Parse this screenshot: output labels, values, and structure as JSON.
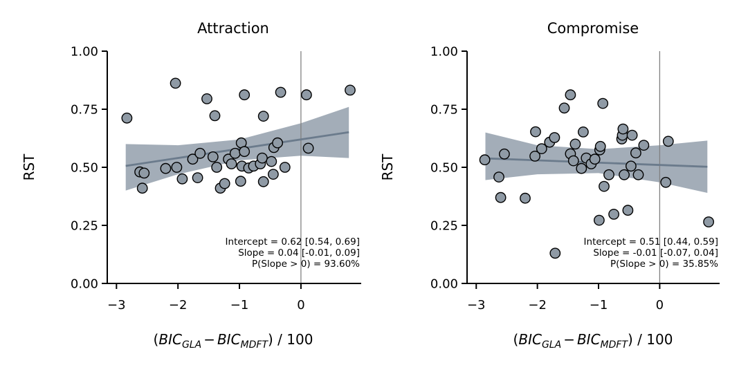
{
  "chart_data": [
    {
      "type": "scatter",
      "title": "Attraction",
      "ylabel": "RST",
      "xlabel_parts": {
        "open": "(",
        "a": "BIC",
        "a_sub": "GLA",
        "minus": "−",
        "b": "BIC",
        "b_sub": "MDFT",
        "close": ") / 100"
      },
      "xlim": [
        -3.15,
        0.98
      ],
      "ylim": [
        0,
        1
      ],
      "xticks": [
        {
          "value": -3,
          "label": "−3"
        },
        {
          "value": -2,
          "label": "−2"
        },
        {
          "value": -1,
          "label": "−1"
        },
        {
          "value": 0,
          "label": "0"
        }
      ],
      "yticks": [
        {
          "value": 0,
          "label": "0.00"
        },
        {
          "value": 0.25,
          "label": "0.25"
        },
        {
          "value": 0.5,
          "label": "0.50"
        },
        {
          "value": 0.75,
          "label": "0.75"
        },
        {
          "value": 1,
          "label": "1.00"
        }
      ],
      "vline_x": 0,
      "fit": {
        "x_range": [
          -2.85,
          0.78
        ],
        "intercept": 0.62,
        "slope": 0.04
      },
      "band": {
        "x": [
          -2.85,
          -2.0,
          -1.0,
          0.0,
          0.78
        ],
        "lower": [
          0.4,
          0.47,
          0.53,
          0.55,
          0.54
        ],
        "upper": [
          0.6,
          0.595,
          0.62,
          0.69,
          0.76
        ]
      },
      "points": [
        {
          "x": -2.83,
          "y": 0.712
        },
        {
          "x": -2.62,
          "y": 0.48
        },
        {
          "x": -2.58,
          "y": 0.41
        },
        {
          "x": -2.55,
          "y": 0.475
        },
        {
          "x": -2.2,
          "y": 0.495
        },
        {
          "x": -2.04,
          "y": 0.862
        },
        {
          "x": -2.02,
          "y": 0.5
        },
        {
          "x": -1.93,
          "y": 0.45
        },
        {
          "x": -1.76,
          "y": 0.535
        },
        {
          "x": -1.68,
          "y": 0.455
        },
        {
          "x": -1.64,
          "y": 0.56
        },
        {
          "x": -1.53,
          "y": 0.795
        },
        {
          "x": -1.43,
          "y": 0.545
        },
        {
          "x": -1.4,
          "y": 0.722
        },
        {
          "x": -1.37,
          "y": 0.5
        },
        {
          "x": -1.31,
          "y": 0.41
        },
        {
          "x": -1.24,
          "y": 0.43
        },
        {
          "x": -1.18,
          "y": 0.535
        },
        {
          "x": -1.13,
          "y": 0.515
        },
        {
          "x": -1.07,
          "y": 0.56
        },
        {
          "x": -0.98,
          "y": 0.44
        },
        {
          "x": -0.97,
          "y": 0.605
        },
        {
          "x": -0.96,
          "y": 0.505
        },
        {
          "x": -0.92,
          "y": 0.812
        },
        {
          "x": -0.92,
          "y": 0.568
        },
        {
          "x": -0.85,
          "y": 0.497
        },
        {
          "x": -0.77,
          "y": 0.505
        },
        {
          "x": -0.66,
          "y": 0.515
        },
        {
          "x": -0.63,
          "y": 0.54
        },
        {
          "x": -0.61,
          "y": 0.72
        },
        {
          "x": -0.61,
          "y": 0.438
        },
        {
          "x": -0.48,
          "y": 0.525
        },
        {
          "x": -0.45,
          "y": 0.47
        },
        {
          "x": -0.44,
          "y": 0.585
        },
        {
          "x": -0.38,
          "y": 0.605
        },
        {
          "x": -0.33,
          "y": 0.823
        },
        {
          "x": -0.26,
          "y": 0.5
        },
        {
          "x": 0.09,
          "y": 0.812
        },
        {
          "x": 0.12,
          "y": 0.582
        },
        {
          "x": 0.8,
          "y": 0.832
        }
      ],
      "annotation": [
        "Intercept = 0.62 [0.54, 0.69]",
        "Slope = 0.04 [-0.01, 0.09]",
        "P(Slope > 0) = 93.60%"
      ],
      "colors": {
        "point_fill": "#8f9aa5",
        "point_edge": "#000000",
        "band": "#a3adb8",
        "fit_line": "#6b7b8c",
        "vline": "#808080"
      }
    },
    {
      "type": "scatter",
      "title": "Compromise",
      "ylabel": "RST",
      "xlabel_parts": {
        "open": "(",
        "a": "BIC",
        "a_sub": "GLA",
        "minus": "−",
        "b": "BIC",
        "b_sub": "MDFT",
        "close": ") / 100"
      },
      "xlim": [
        -3.15,
        0.98
      ],
      "ylim": [
        0,
        1
      ],
      "xticks": [
        {
          "value": -3,
          "label": "−3"
        },
        {
          "value": -2,
          "label": "−2"
        },
        {
          "value": -1,
          "label": "−1"
        },
        {
          "value": 0,
          "label": "0"
        }
      ],
      "yticks": [
        {
          "value": 0,
          "label": "0.00"
        },
        {
          "value": 0.25,
          "label": "0.25"
        },
        {
          "value": 0.5,
          "label": "0.50"
        },
        {
          "value": 0.75,
          "label": "0.75"
        },
        {
          "value": 1,
          "label": "1.00"
        }
      ],
      "vline_x": 0,
      "fit": {
        "x_range": [
          -2.85,
          0.78
        ],
        "intercept": 0.51,
        "slope": -0.01
      },
      "band": {
        "x": [
          -2.85,
          -2.0,
          -1.0,
          0.0,
          0.78
        ],
        "lower": [
          0.445,
          0.47,
          0.475,
          0.435,
          0.39
        ],
        "upper": [
          0.65,
          0.595,
          0.578,
          0.595,
          0.615
        ]
      },
      "points": [
        {
          "x": -2.86,
          "y": 0.532
        },
        {
          "x": -2.63,
          "y": 0.458
        },
        {
          "x": -2.6,
          "y": 0.37
        },
        {
          "x": -2.54,
          "y": 0.557
        },
        {
          "x": -2.2,
          "y": 0.367
        },
        {
          "x": -2.04,
          "y": 0.548
        },
        {
          "x": -2.03,
          "y": 0.653
        },
        {
          "x": -1.93,
          "y": 0.58
        },
        {
          "x": -1.8,
          "y": 0.608
        },
        {
          "x": -1.72,
          "y": 0.628
        },
        {
          "x": -1.71,
          "y": 0.13
        },
        {
          "x": -1.56,
          "y": 0.755
        },
        {
          "x": -1.46,
          "y": 0.812
        },
        {
          "x": -1.46,
          "y": 0.558
        },
        {
          "x": -1.41,
          "y": 0.528
        },
        {
          "x": -1.38,
          "y": 0.6
        },
        {
          "x": -1.28,
          "y": 0.495
        },
        {
          "x": -1.25,
          "y": 0.652
        },
        {
          "x": -1.2,
          "y": 0.54
        },
        {
          "x": -1.12,
          "y": 0.515
        },
        {
          "x": -1.06,
          "y": 0.535
        },
        {
          "x": -0.99,
          "y": 0.272
        },
        {
          "x": -0.98,
          "y": 0.575
        },
        {
          "x": -0.97,
          "y": 0.59
        },
        {
          "x": -0.93,
          "y": 0.775
        },
        {
          "x": -0.91,
          "y": 0.418
        },
        {
          "x": -0.83,
          "y": 0.468
        },
        {
          "x": -0.75,
          "y": 0.298
        },
        {
          "x": -0.62,
          "y": 0.622
        },
        {
          "x": -0.61,
          "y": 0.638
        },
        {
          "x": -0.6,
          "y": 0.665
        },
        {
          "x": -0.58,
          "y": 0.468
        },
        {
          "x": -0.52,
          "y": 0.315
        },
        {
          "x": -0.47,
          "y": 0.505
        },
        {
          "x": -0.45,
          "y": 0.638
        },
        {
          "x": -0.39,
          "y": 0.562
        },
        {
          "x": -0.35,
          "y": 0.468
        },
        {
          "x": -0.26,
          "y": 0.595
        },
        {
          "x": 0.1,
          "y": 0.435
        },
        {
          "x": 0.14,
          "y": 0.612
        },
        {
          "x": 0.8,
          "y": 0.265
        }
      ],
      "annotation": [
        "Intercept = 0.51 [0.44, 0.59]",
        "Slope = -0.01 [-0.07, 0.04]",
        "P(Slope > 0) = 35.85%"
      ],
      "colors": {
        "point_fill": "#8f9aa5",
        "point_edge": "#000000",
        "band": "#a3adb8",
        "fit_line": "#6b7b8c",
        "vline": "#808080"
      }
    }
  ]
}
